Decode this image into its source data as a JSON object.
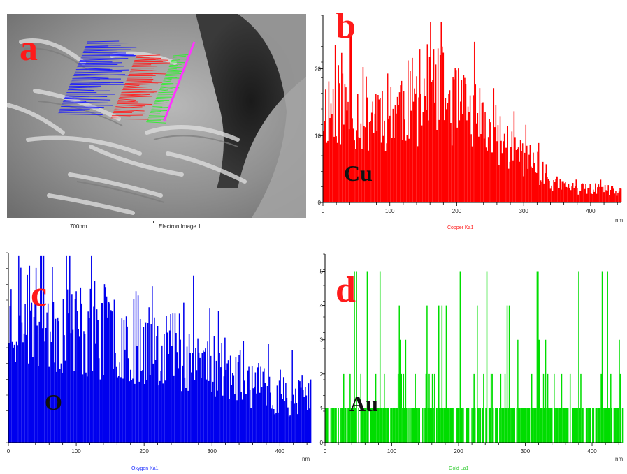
{
  "panel_a": {
    "letter": "a",
    "scale_bar_label": "700nm",
    "image_caption": "Electron Image 1",
    "colors": {
      "letter": "#ff1a1a",
      "cu_trace": "#ff2020",
      "o_trace": "#1a1aff",
      "au_trace": "#33ee33",
      "scan_line": "#ff33ff"
    }
  },
  "chart_data": [
    {
      "panel": "b",
      "type": "bar",
      "letter": "b",
      "element_label": "Cu",
      "xlabel": "Copper Ka1",
      "x_unit": "nm",
      "color": "#ff0000",
      "xlim": [
        0,
        445
      ],
      "ylim": [
        0,
        28
      ],
      "x_ticks": [
        "0",
        "100",
        "200",
        "300",
        "400"
      ],
      "y_ticks": [
        "0",
        "10",
        "20"
      ],
      "x": [
        0,
        20,
        40,
        60,
        80,
        100,
        120,
        140,
        160,
        180,
        200,
        220,
        240,
        260,
        280,
        300,
        320,
        340,
        360,
        380,
        400,
        420,
        440
      ],
      "values": [
        14,
        15,
        14,
        13,
        14,
        14,
        15,
        15,
        17,
        16,
        14,
        13,
        11,
        10,
        8,
        7,
        5,
        3,
        2.5,
        2,
        2,
        2,
        1.5
      ],
      "peak_max": 27
    },
    {
      "panel": "c",
      "type": "bar",
      "letter": "c",
      "element_label": "O",
      "xlabel": "Oxygen Ka1",
      "x_unit": "nm",
      "color": "#0000ee",
      "xlim": [
        0,
        445
      ],
      "ylim": [
        0,
        56
      ],
      "x_ticks": [
        "0",
        "100",
        "200",
        "300",
        "400"
      ],
      "y_ticks": [],
      "x": [
        0,
        20,
        40,
        60,
        80,
        100,
        120,
        140,
        160,
        180,
        200,
        220,
        240,
        260,
        280,
        300,
        320,
        340,
        360,
        380,
        400,
        420,
        440
      ],
      "values": [
        38,
        38,
        37,
        36,
        35,
        34,
        33,
        33,
        32,
        31,
        31,
        30,
        29,
        27,
        25,
        23,
        21,
        19,
        17,
        15,
        14,
        14,
        14
      ],
      "peak_max": 55
    },
    {
      "panel": "d",
      "type": "bar",
      "letter": "d",
      "element_label": "Au",
      "xlabel": "Gold La1",
      "x_unit": "nm",
      "color": "#00dd00",
      "xlim": [
        0,
        445
      ],
      "ylim": [
        0,
        5.5
      ],
      "x_ticks": [
        "0",
        "100",
        "200",
        "300",
        "400"
      ],
      "y_ticks": [
        "0",
        "1",
        "2",
        "3",
        "4",
        "5"
      ],
      "x": [
        0,
        20,
        40,
        60,
        80,
        100,
        120,
        140,
        160,
        180,
        200,
        220,
        240,
        260,
        280,
        300,
        320,
        340,
        360,
        380,
        400,
        420,
        440
      ],
      "values": [
        1,
        1,
        1,
        1,
        1,
        1,
        1,
        1,
        1,
        1,
        1,
        1,
        1,
        1,
        1,
        1,
        1,
        1,
        0.5,
        0.5,
        0.5,
        0.5,
        0.5
      ],
      "peak_max": 5
    }
  ]
}
